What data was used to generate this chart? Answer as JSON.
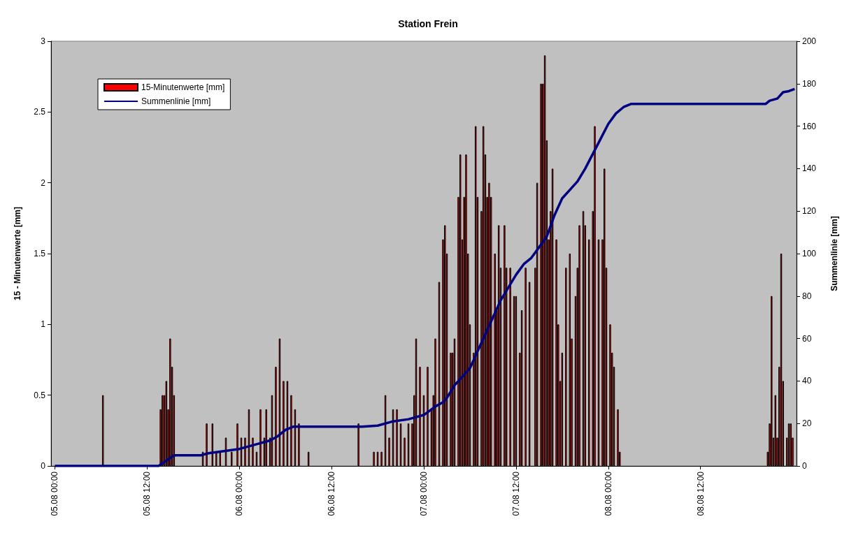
{
  "chart_data": {
    "type": "bar",
    "title": "Station Frein",
    "ylabel": "15 - Minutenwerte [mm]",
    "y2label": "Summenlinie [mm]",
    "xlim": [
      "--08-04T23:30",
      "--08-09T00:30"
    ],
    "xticks": [
      {
        "value": "--08-05T00:00",
        "label": "05.08 00:00"
      },
      {
        "value": "--08-05T12:00",
        "label": "05.08 12:00"
      },
      {
        "value": "--08-06T00:00",
        "label": "06.08 00:00"
      },
      {
        "value": "--08-06T12:00",
        "label": "06.08 12:00"
      },
      {
        "value": "--08-07T00:00",
        "label": "07.08 00:00"
      },
      {
        "value": "--08-07T12:00",
        "label": "07.08 12:00"
      },
      {
        "value": "--08-08T00:00",
        "label": "08.08 00:00"
      },
      {
        "value": "--08-08T12:00",
        "label": "08.08 12:00"
      }
    ],
    "ylim": [
      0,
      3
    ],
    "yticks": [
      0,
      0.5,
      1,
      1.5,
      2,
      2.5,
      3
    ],
    "y2lim": [
      0,
      200
    ],
    "y2ticks": [
      0,
      20,
      40,
      60,
      80,
      100,
      120,
      140,
      160,
      180,
      200
    ],
    "grid": false,
    "legend": "top left",
    "series": [
      {
        "name": "15-Minutenwerte [mm]",
        "color": "#ff0000",
        "x": [
          "--08-05T06:15",
          "--08-05T13:45",
          "--08-05T14:00",
          "--08-05T14:15",
          "--08-05T14:30",
          "--08-05T14:45",
          "--08-05T15:00",
          "--08-05T15:15",
          "--08-05T15:30",
          "--08-05T19:15",
          "--08-05T19:45",
          "--08-05T20:30",
          "--08-05T21:00",
          "--08-05T21:30",
          "--08-05T22:15",
          "--08-05T23:00",
          "--08-05T23:45",
          "--08-06T00:15",
          "--08-06T00:45",
          "--08-06T01:15",
          "--08-06T01:45",
          "--08-06T02:15",
          "--08-06T02:45",
          "--08-06T03:15",
          "--08-06T03:30",
          "--08-06T04:00",
          "--08-06T04:15",
          "--08-06T04:45",
          "--08-06T05:15",
          "--08-06T05:45",
          "--08-06T06:15",
          "--08-06T06:45",
          "--08-06T07:15",
          "--08-06T07:45",
          "--08-06T09:00",
          "--08-06T15:30",
          "--08-06T17:30",
          "--08-06T18:00",
          "--08-06T18:30",
          "--08-06T19:00",
          "--08-06T19:30",
          "--08-06T20:00",
          "--08-06T20:30",
          "--08-06T21:00",
          "--08-06T21:30",
          "--08-06T22:00",
          "--08-06T22:30",
          "--08-06T22:45",
          "--08-06T23:00",
          "--08-06T23:30",
          "--08-07T00:00",
          "--08-07T00:30",
          "--08-07T01:00",
          "--08-07T01:15",
          "--08-07T01:30",
          "--08-07T02:00",
          "--08-07T02:30",
          "--08-07T02:45",
          "--08-07T03:00",
          "--08-07T03:30",
          "--08-07T03:45",
          "--08-07T04:00",
          "--08-07T04:30",
          "--08-07T04:45",
          "--08-07T05:00",
          "--08-07T05:15",
          "--08-07T05:30",
          "--08-07T05:45",
          "--08-07T06:00",
          "--08-07T06:30",
          "--08-07T06:45",
          "--08-07T07:00",
          "--08-07T07:30",
          "--08-07T07:45",
          "--08-07T08:00",
          "--08-07T08:15",
          "--08-07T08:30",
          "--08-07T08:45",
          "--08-07T09:15",
          "--08-07T09:30",
          "--08-07T09:45",
          "--08-07T10:00",
          "--08-07T10:30",
          "--08-07T10:45",
          "--08-07T11:15",
          "--08-07T11:45",
          "--08-07T12:00",
          "--08-07T12:30",
          "--08-07T12:45",
          "--08-07T13:15",
          "--08-07T13:45",
          "--08-07T14:15",
          "--08-07T14:30",
          "--08-07T14:45",
          "--08-07T15:15",
          "--08-07T15:30",
          "--08-07T15:45",
          "--08-07T16:00",
          "--08-07T16:15",
          "--08-07T16:30",
          "--08-07T16:45",
          "--08-07T17:15",
          "--08-07T17:30",
          "--08-07T17:45",
          "--08-07T18:00",
          "--08-07T18:30",
          "--08-07T19:00",
          "--08-07T19:15",
          "--08-07T19:45",
          "--08-07T20:00",
          "--08-07T20:15",
          "--08-07T20:45",
          "--08-07T21:00",
          "--08-07T21:30",
          "--08-07T22:00",
          "--08-07T22:15",
          "--08-07T22:45",
          "--08-07T23:15",
          "--08-07T23:30",
          "--08-07T23:45",
          "--08-08T00:15",
          "--08-08T00:30",
          "--08-08T00:45",
          "--08-08T01:15",
          "--08-08T01:30",
          "--08-08T20:45",
          "--08-08T21:00",
          "--08-08T21:15",
          "--08-08T21:30",
          "--08-08T21:45",
          "--08-08T22:00",
          "--08-08T22:15",
          "--08-08T22:30",
          "--08-08T22:45",
          "--08-08T23:15",
          "--08-08T23:30",
          "--08-08T23:45",
          "--08-09T00:00"
        ],
        "values": [
          0.5,
          0.4,
          0.5,
          0.5,
          0.6,
          0.4,
          0.9,
          0.7,
          0.5,
          0.1,
          0.3,
          0.3,
          0.1,
          0.1,
          0.2,
          0.1,
          0.3,
          0.2,
          0.2,
          0.4,
          0.2,
          0.1,
          0.4,
          0.2,
          0.4,
          0.2,
          0.5,
          0.7,
          0.9,
          0.6,
          0.6,
          0.5,
          0.4,
          0.3,
          0.1,
          0.3,
          0.1,
          0.1,
          0.1,
          0.5,
          0.2,
          0.4,
          0.4,
          0.3,
          0.2,
          0.3,
          0.3,
          0.5,
          0.9,
          0.7,
          0.5,
          0.7,
          0.4,
          0.5,
          0.9,
          1.3,
          1.6,
          1.7,
          1.5,
          0.8,
          0.8,
          0.9,
          1.9,
          2.2,
          1.6,
          1.9,
          2.2,
          1.5,
          1.0,
          0.8,
          2.4,
          1.9,
          1.8,
          2.4,
          2.2,
          1.9,
          2.0,
          1.9,
          1.5,
          1.1,
          1.7,
          1.4,
          1.7,
          1.4,
          1.4,
          1.2,
          1.2,
          0.8,
          1.1,
          1.4,
          1.3,
          null,
          1.4,
          2.0,
          2.7,
          2.7,
          2.9,
          2.3,
          1.6,
          1.8,
          2.1,
          1.6,
          1.0,
          0.6,
          0.8,
          1.4,
          1.5,
          0.9,
          1.2,
          1.4,
          1.7,
          1.8,
          1.7,
          1.6,
          1.8,
          2.4,
          1.6,
          1.6,
          2.1,
          1.4,
          1.0,
          0.8,
          0.7,
          0.4,
          0.1,
          0.1,
          0.3,
          1.2,
          0.2,
          0.5,
          0.2,
          0.7,
          1.5,
          0.6,
          0.2,
          0.3,
          0.3,
          0.2
        ]
      },
      {
        "name": "Summenlinie [mm]",
        "type": "line",
        "axis": "y2",
        "color": "#000080",
        "x": [
          "--08-05T00:00",
          "--08-05T13:30",
          "--08-05T15:30",
          "--08-05T19:00",
          "--08-05T20:00",
          "--08-05T22:00",
          "--08-06T00:00",
          "--08-06T02:00",
          "--08-06T04:00",
          "--08-06T05:00",
          "--08-06T06:00",
          "--08-06T07:00",
          "--08-06T09:00",
          "--08-06T16:00",
          "--08-06T18:00",
          "--08-06T20:00",
          "--08-06T22:00",
          "--08-07T00:00",
          "--08-07T01:30",
          "--08-07T02:30",
          "--08-07T03:00",
          "--08-07T04:00",
          "--08-07T05:00",
          "--08-07T06:00",
          "--08-07T07:00",
          "--08-07T08:00",
          "--08-07T09:00",
          "--08-07T10:00",
          "--08-07T11:00",
          "--08-07T12:00",
          "--08-07T13:00",
          "--08-07T14:00",
          "--08-07T15:00",
          "--08-07T16:00",
          "--08-07T17:00",
          "--08-07T18:00",
          "--08-07T19:00",
          "--08-07T20:00",
          "--08-07T21:00",
          "--08-07T22:00",
          "--08-07T23:00",
          "--08-08T00:00",
          "--08-08T01:00",
          "--08-08T02:00",
          "--08-08T03:00",
          "--08-08T20:30",
          "--08-08T21:00",
          "--08-08T22:00",
          "--08-08T22:45",
          "--08-08T23:30",
          "--08-09T00:15"
        ],
        "values": [
          0,
          0,
          5,
          5,
          6,
          7,
          8,
          10,
          12,
          14,
          17,
          18.5,
          18.5,
          18.5,
          19,
          21,
          22,
          24,
          28,
          30,
          32,
          38,
          42,
          46,
          54,
          62,
          70,
          78,
          84,
          90,
          95,
          98,
          103,
          108,
          118,
          126,
          130,
          134,
          140,
          147,
          154,
          161,
          166,
          169,
          170.5,
          170.5,
          172,
          173,
          176,
          176.5,
          177.5
        ]
      }
    ]
  }
}
